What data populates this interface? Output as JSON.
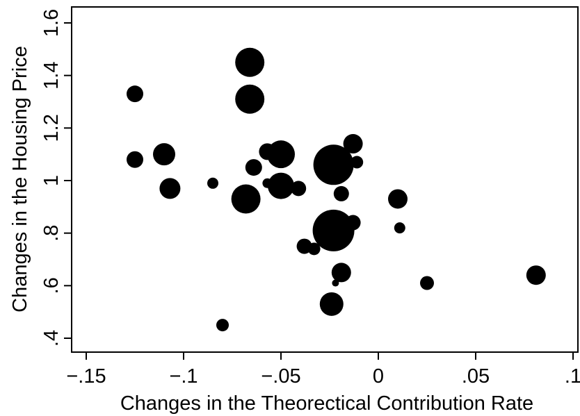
{
  "chart_data": {
    "type": "scatter",
    "xlabel": "Changes in the Theorectical Contribution Rate",
    "ylabel": "Changes in the Housing Price",
    "xlim": [
      -0.15,
      0.1
    ],
    "ylim": [
      0.4,
      1.6
    ],
    "x_ticks": [
      -0.15,
      -0.1,
      -0.05,
      0,
      0.05,
      0.1
    ],
    "x_tick_labels": [
      "−.15",
      "−.1",
      "−.05",
      "0",
      ".05",
      ".1"
    ],
    "y_ticks": [
      0.4,
      0.6,
      0.8,
      1.0,
      1.2,
      1.4,
      1.6
    ],
    "y_tick_labels": [
      ".4",
      ".6",
      ".8",
      "1",
      "1.2",
      "1.4",
      "1.6"
    ],
    "grid": false,
    "marker_color": "#000000",
    "note": "bubble scatter; point size varies by weight",
    "points": [
      {
        "x": -0.125,
        "y": 1.33,
        "size": 12
      },
      {
        "x": -0.125,
        "y": 1.08,
        "size": 12
      },
      {
        "x": -0.11,
        "y": 1.1,
        "size": 16
      },
      {
        "x": -0.107,
        "y": 0.97,
        "size": 15
      },
      {
        "x": -0.085,
        "y": 0.99,
        "size": 8
      },
      {
        "x": -0.08,
        "y": 0.45,
        "size": 9
      },
      {
        "x": -0.068,
        "y": 0.93,
        "size": 21
      },
      {
        "x": -0.066,
        "y": 1.45,
        "size": 21
      },
      {
        "x": -0.066,
        "y": 1.31,
        "size": 21
      },
      {
        "x": -0.064,
        "y": 1.05,
        "size": 12
      },
      {
        "x": -0.057,
        "y": 1.11,
        "size": 12
      },
      {
        "x": -0.057,
        "y": 0.99,
        "size": 7
      },
      {
        "x": -0.05,
        "y": 1.1,
        "size": 20
      },
      {
        "x": -0.05,
        "y": 0.98,
        "size": 19
      },
      {
        "x": -0.041,
        "y": 0.97,
        "size": 11
      },
      {
        "x": -0.038,
        "y": 0.75,
        "size": 11
      },
      {
        "x": -0.033,
        "y": 0.74,
        "size": 9
      },
      {
        "x": -0.024,
        "y": 0.53,
        "size": 17
      },
      {
        "x": -0.023,
        "y": 1.06,
        "size": 29
      },
      {
        "x": -0.023,
        "y": 0.81,
        "size": 30
      },
      {
        "x": -0.022,
        "y": 0.61,
        "size": 5
      },
      {
        "x": -0.019,
        "y": 0.95,
        "size": 11
      },
      {
        "x": -0.019,
        "y": 0.65,
        "size": 14
      },
      {
        "x": -0.013,
        "y": 1.14,
        "size": 14
      },
      {
        "x": -0.013,
        "y": 0.84,
        "size": 11
      },
      {
        "x": -0.011,
        "y": 1.07,
        "size": 9
      },
      {
        "x": 0.01,
        "y": 0.93,
        "size": 14
      },
      {
        "x": 0.011,
        "y": 0.82,
        "size": 8
      },
      {
        "x": 0.025,
        "y": 0.61,
        "size": 10
      },
      {
        "x": 0.081,
        "y": 0.64,
        "size": 14
      }
    ]
  }
}
